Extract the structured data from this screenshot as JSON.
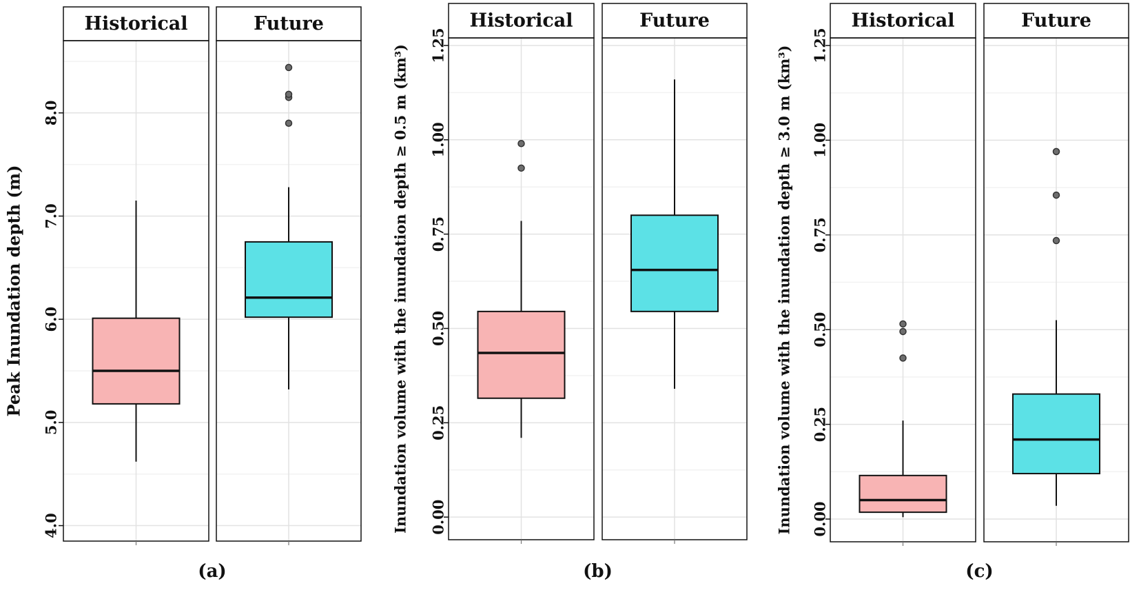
{
  "colors": {
    "historical_fill": "#F8B4B4",
    "future_fill": "#5CE1E6",
    "stroke": "#111111",
    "grid_major": "#E2E2E2",
    "grid_minor": "#F2F2F2",
    "outlier": "#6E6E6E"
  },
  "chart_data": [
    {
      "type": "boxplot",
      "label": "(a)",
      "ylabel": "Peak Inundation depth (m)",
      "ylim": [
        3.85,
        8.7
      ],
      "yticks": [
        4.0,
        5.0,
        6.0,
        7.0,
        8.0
      ],
      "ytick_labels": [
        "4.0",
        "5.0",
        "6.0",
        "7.0",
        "8.0"
      ],
      "grid": true,
      "panels": [
        {
          "name": "Historical",
          "whisker_low": 4.62,
          "q1": 5.18,
          "median": 5.5,
          "q3": 6.01,
          "whisker_high": 7.15,
          "outliers": []
        },
        {
          "name": "Future",
          "whisker_low": 5.32,
          "q1": 6.02,
          "median": 6.21,
          "q3": 6.75,
          "whisker_high": 7.28,
          "outliers": [
            7.9,
            8.15,
            8.18,
            8.44
          ]
        }
      ]
    },
    {
      "type": "boxplot",
      "label": "(b)",
      "ylabel": "Inundation volume with the inundation depth ≥ 0.5 m (km³)",
      "ylim": [
        -0.06,
        1.27
      ],
      "yticks": [
        0.0,
        0.25,
        0.5,
        0.75,
        1.0,
        1.25
      ],
      "ytick_labels": [
        "0.00",
        "0.25",
        "0.50",
        "0.75",
        "1.00",
        "1.25"
      ],
      "grid": true,
      "panels": [
        {
          "name": "Historical",
          "whisker_low": 0.21,
          "q1": 0.315,
          "median": 0.435,
          "q3": 0.545,
          "whisker_high": 0.785,
          "outliers": [
            0.925,
            0.99
          ]
        },
        {
          "name": "Future",
          "whisker_low": 0.34,
          "q1": 0.545,
          "median": 0.655,
          "q3": 0.8,
          "whisker_high": 1.16,
          "outliers": []
        }
      ]
    },
    {
      "type": "boxplot",
      "label": "(c)",
      "ylabel": "Inundation volume with the inundation depth ≥ 3.0 m (km³)",
      "ylim": [
        -0.06,
        1.27
      ],
      "yticks": [
        0.0,
        0.25,
        0.5,
        0.75,
        1.0,
        1.25
      ],
      "ytick_labels": [
        "0.00",
        "0.25",
        "0.50",
        "0.75",
        "1.00",
        "1.25"
      ],
      "grid": true,
      "panels": [
        {
          "name": "Historical",
          "whisker_low": 0.005,
          "q1": 0.018,
          "median": 0.05,
          "q3": 0.115,
          "whisker_high": 0.26,
          "outliers": [
            0.425,
            0.495,
            0.515
          ]
        },
        {
          "name": "Future",
          "whisker_low": 0.035,
          "q1": 0.12,
          "median": 0.21,
          "q3": 0.33,
          "whisker_high": 0.525,
          "outliers": [
            0.735,
            0.855,
            0.97
          ]
        }
      ]
    }
  ]
}
